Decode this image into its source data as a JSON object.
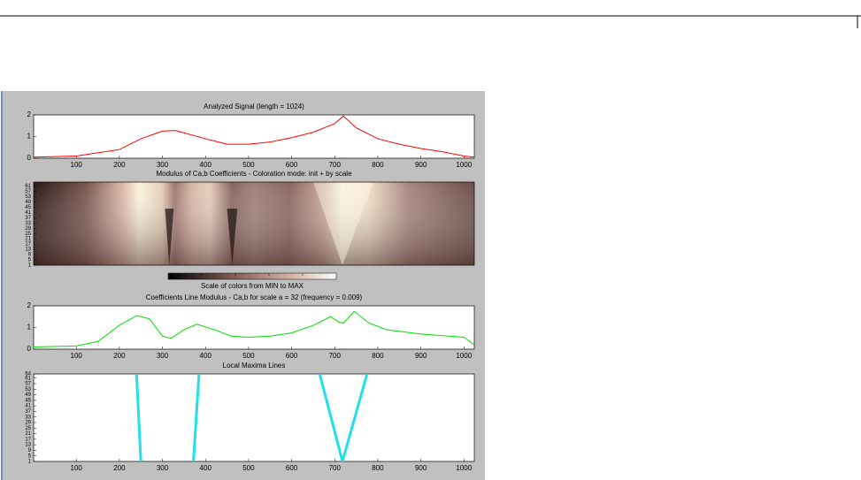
{
  "chart_data": [
    {
      "type": "line",
      "title": "Analyzed Signal (length = 1024)",
      "color": "#ff0000",
      "x": [
        1,
        100,
        200,
        250,
        300,
        330,
        400,
        450,
        500,
        550,
        600,
        650,
        700,
        720,
        750,
        800,
        850,
        900,
        950,
        1000,
        1024
      ],
      "values": [
        0.05,
        0.1,
        0.4,
        0.9,
        1.25,
        1.28,
        0.9,
        0.65,
        0.65,
        0.75,
        0.95,
        1.2,
        1.6,
        1.95,
        1.4,
        0.9,
        0.65,
        0.45,
        0.3,
        0.1,
        0.05
      ],
      "xlim": [
        1,
        1024
      ],
      "xticks": [
        100,
        200,
        300,
        400,
        500,
        600,
        700,
        800,
        900,
        1000
      ],
      "ylim": [
        0,
        2
      ],
      "yticks": [
        0,
        1,
        2
      ]
    },
    {
      "type": "heatmap",
      "title": "Modulus of Ca,b Coefficients - Coloration mode: init + by scale",
      "colorbar_label": "Scale of colors from MIN to MAX",
      "xlim": [
        1,
        1024
      ],
      "ylim": [
        1,
        64
      ],
      "yticks": [
        1,
        5,
        9,
        13,
        17,
        21,
        25,
        29,
        33,
        37,
        41,
        45,
        49,
        53,
        57,
        61
      ]
    },
    {
      "type": "line",
      "title": "Coefficients Line Modulus - Ca,b for scale a = 32  (frequency =  0.009)",
      "color": "#00dd00",
      "x": [
        1,
        100,
        150,
        200,
        240,
        270,
        300,
        320,
        350,
        380,
        420,
        460,
        500,
        550,
        600,
        650,
        690,
        710,
        720,
        745,
        780,
        820,
        900,
        1000,
        1024
      ],
      "values": [
        0.1,
        0.15,
        0.35,
        1.1,
        1.55,
        1.4,
        0.6,
        0.5,
        0.9,
        1.15,
        0.9,
        0.6,
        0.55,
        0.6,
        0.75,
        1.1,
        1.5,
        1.25,
        1.2,
        1.75,
        1.2,
        0.9,
        0.7,
        0.55,
        0.2
      ],
      "xlim": [
        1,
        1024
      ],
      "xticks": [
        100,
        200,
        300,
        400,
        500,
        600,
        700,
        800,
        900,
        1000
      ],
      "ylim": [
        0,
        2
      ],
      "yticks": [
        0,
        1,
        2
      ]
    },
    {
      "type": "maxima",
      "title": "Local Maxima Lines",
      "color": "#22e0e8",
      "series": [
        {
          "x": [
            250,
            240
          ],
          "values": [
            1,
            64
          ]
        },
        {
          "x": [
            372,
            385
          ],
          "values": [
            1,
            64
          ]
        },
        {
          "x": [
            718,
            665
          ],
          "values": [
            1,
            64
          ]
        },
        {
          "x": [
            718,
            775
          ],
          "values": [
            1,
            64
          ]
        }
      ],
      "xlim": [
        1,
        1024
      ],
      "xticks": [
        100,
        200,
        300,
        400,
        500,
        600,
        700,
        800,
        900,
        1000
      ],
      "ylim": [
        1,
        64
      ],
      "yticks": [
        1,
        5,
        9,
        13,
        17,
        21,
        25,
        29,
        33,
        37,
        41,
        45,
        49,
        53,
        57,
        61,
        64
      ]
    }
  ]
}
